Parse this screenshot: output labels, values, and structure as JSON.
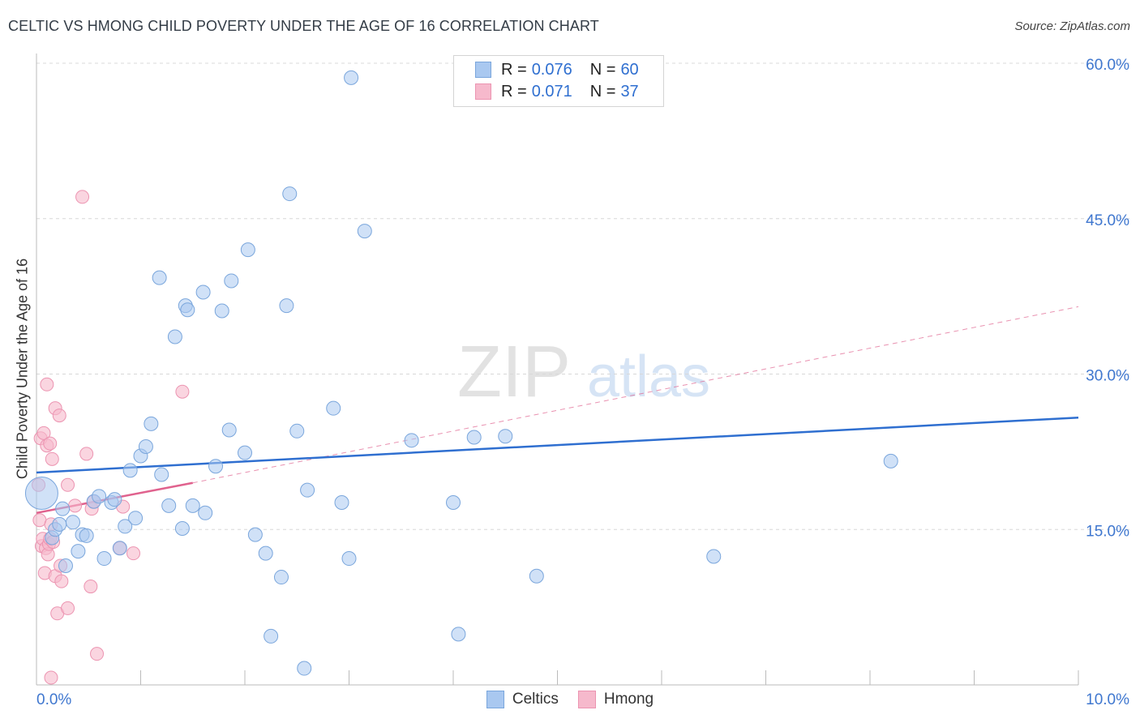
{
  "title": "CELTIC VS HMONG CHILD POVERTY UNDER THE AGE OF 16 CORRELATION CHART",
  "source": "Source: ZipAtlas.com",
  "watermark": {
    "zip": "ZIP",
    "atlas": "atlas"
  },
  "legend": {
    "celtics": {
      "r_label": "R =",
      "r_value": "0.076",
      "n_label": "N =",
      "n_value": "60"
    },
    "hmong": {
      "r_label": "R =",
      "r_value": "0.071",
      "n_label": "N =",
      "n_value": "37"
    }
  },
  "bottom_legend": {
    "celtics": "Celtics",
    "hmong": "Hmong"
  },
  "colors": {
    "celtics_fill": "#a9c8f0",
    "celtics_stroke": "#7aa6dc",
    "celtics_line": "#2f6fd0",
    "hmong_fill": "#f6b9cc",
    "hmong_stroke": "#ec94b1",
    "hmong_line": "#e0628e",
    "grid": "#d8d8d8",
    "tick_label": "#3f77cf"
  },
  "chart_data": {
    "type": "scatter",
    "title": "CELTIC VS HMONG CHILD POVERTY UNDER THE AGE OF 16 CORRELATION CHART",
    "xlabel": "",
    "ylabel": "Child Poverty Under the Age of 16",
    "xlim": [
      0,
      10
    ],
    "ylim": [
      0,
      60
    ],
    "x_tick_labels": [
      {
        "value": 0,
        "label": "0.0%"
      },
      {
        "value": 10,
        "label": "10.0%"
      }
    ],
    "y_tick_labels": [
      {
        "value": 15,
        "label": "15.0%"
      },
      {
        "value": 30,
        "label": "30.0%"
      },
      {
        "value": 45,
        "label": "45.0%"
      },
      {
        "value": 60,
        "label": "60.0%"
      }
    ],
    "series": [
      {
        "name": "Celtics",
        "points": [
          [
            0.05,
            18.5
          ],
          [
            0.15,
            14.2
          ],
          [
            0.18,
            15.0
          ],
          [
            0.22,
            15.5
          ],
          [
            0.28,
            11.5
          ],
          [
            0.35,
            15.7
          ],
          [
            0.4,
            12.9
          ],
          [
            0.44,
            14.5
          ],
          [
            0.48,
            14.4
          ],
          [
            0.55,
            17.7
          ],
          [
            0.6,
            18.2
          ],
          [
            0.65,
            12.2
          ],
          [
            0.72,
            17.6
          ],
          [
            0.75,
            17.9
          ],
          [
            0.8,
            13.2
          ],
          [
            0.85,
            15.3
          ],
          [
            0.9,
            20.7
          ],
          [
            0.95,
            16.1
          ],
          [
            1.0,
            22.1
          ],
          [
            1.05,
            23.0
          ],
          [
            1.1,
            25.2
          ],
          [
            1.18,
            39.3
          ],
          [
            1.2,
            20.3
          ],
          [
            1.27,
            17.3
          ],
          [
            1.33,
            33.6
          ],
          [
            1.4,
            15.1
          ],
          [
            1.43,
            36.6
          ],
          [
            1.45,
            36.2
          ],
          [
            1.5,
            17.3
          ],
          [
            1.6,
            37.9
          ],
          [
            1.62,
            16.6
          ],
          [
            1.72,
            21.1
          ],
          [
            1.78,
            36.1
          ],
          [
            1.85,
            24.6
          ],
          [
            1.87,
            39.0
          ],
          [
            2.0,
            22.4
          ],
          [
            2.03,
            42.0
          ],
          [
            2.1,
            14.5
          ],
          [
            2.2,
            12.7
          ],
          [
            2.25,
            4.7
          ],
          [
            2.35,
            10.4
          ],
          [
            2.4,
            36.6
          ],
          [
            2.43,
            47.4
          ],
          [
            2.5,
            24.5
          ],
          [
            2.57,
            1.6
          ],
          [
            2.6,
            18.8
          ],
          [
            2.85,
            26.7
          ],
          [
            2.93,
            17.6
          ],
          [
            3.0,
            12.2
          ],
          [
            3.02,
            58.6
          ],
          [
            3.15,
            43.8
          ],
          [
            3.6,
            23.6
          ],
          [
            4.0,
            17.6
          ],
          [
            4.05,
            4.9
          ],
          [
            4.2,
            23.9
          ],
          [
            4.5,
            24.0
          ],
          [
            4.8,
            10.5
          ],
          [
            6.5,
            12.4
          ],
          [
            8.2,
            21.6
          ],
          [
            0.25,
            17.0
          ]
        ],
        "trend": {
          "x": [
            0,
            10
          ],
          "y": [
            20.5,
            25.8
          ]
        }
      },
      {
        "name": "Hmong",
        "points": [
          [
            0.02,
            19.3
          ],
          [
            0.03,
            15.9
          ],
          [
            0.04,
            23.8
          ],
          [
            0.05,
            13.4
          ],
          [
            0.06,
            14.1
          ],
          [
            0.07,
            24.3
          ],
          [
            0.08,
            10.8
          ],
          [
            0.09,
            13.2
          ],
          [
            0.1,
            23.1
          ],
          [
            0.1,
            29.0
          ],
          [
            0.11,
            12.6
          ],
          [
            0.12,
            13.6
          ],
          [
            0.13,
            14.1
          ],
          [
            0.13,
            23.3
          ],
          [
            0.14,
            15.5
          ],
          [
            0.15,
            21.8
          ],
          [
            0.16,
            13.8
          ],
          [
            0.18,
            10.5
          ],
          [
            0.18,
            26.7
          ],
          [
            0.2,
            6.9
          ],
          [
            0.22,
            26.0
          ],
          [
            0.23,
            11.5
          ],
          [
            0.24,
            10.0
          ],
          [
            0.3,
            19.3
          ],
          [
            0.3,
            7.4
          ],
          [
            0.37,
            17.3
          ],
          [
            0.44,
            47.1
          ],
          [
            0.48,
            22.3
          ],
          [
            0.52,
            9.5
          ],
          [
            0.53,
            17.0
          ],
          [
            0.55,
            17.7
          ],
          [
            0.58,
            3.0
          ],
          [
            0.8,
            13.2
          ],
          [
            0.83,
            17.2
          ],
          [
            0.93,
            12.7
          ],
          [
            1.4,
            28.3
          ],
          [
            0.14,
            0.7
          ]
        ],
        "trend": {
          "x": [
            0,
            1.5
          ],
          "y": [
            16.6,
            19.5
          ]
        },
        "trend_extension": {
          "x": [
            1.5,
            10
          ],
          "y": [
            19.5,
            36.5
          ]
        }
      }
    ]
  }
}
